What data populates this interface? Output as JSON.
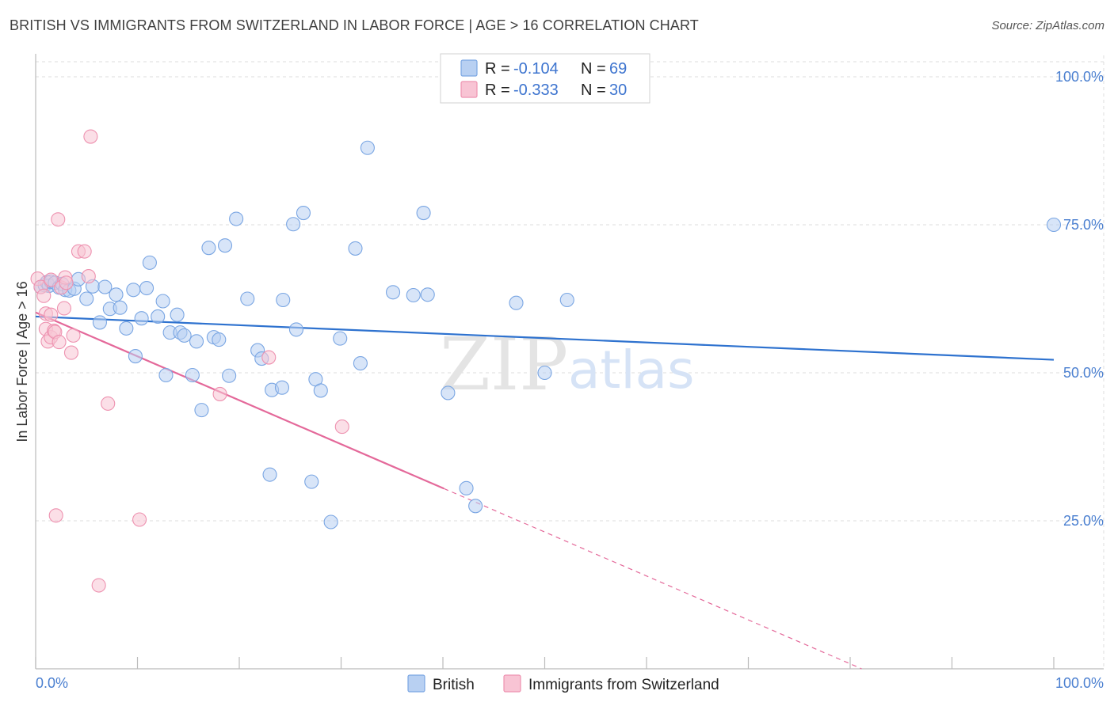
{
  "title": "BRITISH VS IMMIGRANTS FROM SWITZERLAND IN LABOR FORCE | AGE > 16 CORRELATION CHART",
  "source": "Source: ZipAtlas.com",
  "colors": {
    "british_fill": "#b8d0f2",
    "british_stroke": "#7aa6e3",
    "british_line": "#2e72cf",
    "swiss_fill": "#f8c4d4",
    "swiss_stroke": "#ee92b0",
    "swiss_line": "#e4699a",
    "tick_label": "#4a7fd0",
    "grid": "#dcdcdc"
  },
  "legend": {
    "rows": [
      {
        "r_label": "R = ",
        "r_value": "-0.104",
        "n_label": "N = ",
        "n_value": "69"
      },
      {
        "r_label": "R = ",
        "r_value": "-0.333",
        "n_label": "N = ",
        "n_value": "30"
      }
    ]
  },
  "watermark": {
    "zip": "ZIP",
    "atlas": "atlas"
  },
  "chart_data": {
    "type": "scatter",
    "xlabel": "",
    "ylabel": "In Labor Force | Age > 16",
    "xlim": [
      0,
      100
    ],
    "ylim": [
      0,
      100
    ],
    "x_tick_labels": [
      "0.0%",
      "100.0%"
    ],
    "y_ticks": [
      {
        "value": 25,
        "label": "25.0%"
      },
      {
        "value": 50,
        "label": "50.0%"
      },
      {
        "value": 75,
        "label": "75.0%"
      },
      {
        "value": 100,
        "label": "100.0%"
      }
    ],
    "grid": true,
    "legend_position": "top-center",
    "bottom_legend_position": "bottom-center",
    "series": [
      {
        "name": "British",
        "r": -0.104,
        "n": 69,
        "trend": {
          "x0": 0,
          "y0": 59.5,
          "x1": 100,
          "y1": 52.2,
          "dashed_from": null
        },
        "points": [
          [
            0.5,
            64.5
          ],
          [
            0.9,
            64.8
          ],
          [
            1.1,
            65.3
          ],
          [
            1.3,
            64.7
          ],
          [
            1.5,
            65.4
          ],
          [
            1.9,
            65.2
          ],
          [
            2.3,
            64.4
          ],
          [
            2.6,
            65.0
          ],
          [
            2.9,
            64.0
          ],
          [
            3.3,
            63.9
          ],
          [
            3.8,
            64.2
          ],
          [
            4.2,
            65.8
          ],
          [
            5.0,
            62.5
          ],
          [
            5.6,
            64.6
          ],
          [
            6.3,
            58.5
          ],
          [
            6.8,
            64.5
          ],
          [
            7.3,
            60.8
          ],
          [
            7.9,
            63.2
          ],
          [
            8.3,
            61.0
          ],
          [
            8.9,
            57.5
          ],
          [
            9.6,
            64.0
          ],
          [
            9.8,
            52.8
          ],
          [
            10.4,
            59.2
          ],
          [
            10.9,
            64.3
          ],
          [
            11.2,
            68.6
          ],
          [
            12.0,
            59.5
          ],
          [
            12.5,
            62.1
          ],
          [
            12.8,
            49.6
          ],
          [
            13.2,
            56.8
          ],
          [
            13.9,
            59.8
          ],
          [
            14.2,
            56.8
          ],
          [
            14.6,
            56.3
          ],
          [
            15.4,
            49.6
          ],
          [
            15.8,
            55.3
          ],
          [
            16.3,
            43.7
          ],
          [
            17.0,
            71.1
          ],
          [
            17.5,
            56.0
          ],
          [
            18.0,
            55.6
          ],
          [
            18.6,
            71.5
          ],
          [
            19.0,
            49.5
          ],
          [
            19.7,
            76.0
          ],
          [
            20.8,
            62.5
          ],
          [
            21.8,
            53.8
          ],
          [
            22.2,
            52.4
          ],
          [
            23.0,
            32.8
          ],
          [
            23.2,
            47.1
          ],
          [
            24.2,
            47.5
          ],
          [
            24.3,
            62.3
          ],
          [
            25.3,
            75.1
          ],
          [
            25.6,
            57.3
          ],
          [
            26.3,
            77.0
          ],
          [
            27.1,
            31.6
          ],
          [
            27.5,
            48.9
          ],
          [
            28.0,
            47.0
          ],
          [
            29.0,
            24.8
          ],
          [
            29.9,
            55.8
          ],
          [
            31.4,
            71.0
          ],
          [
            31.9,
            51.6
          ],
          [
            32.6,
            88.0
          ],
          [
            35.1,
            63.6
          ],
          [
            37.1,
            63.1
          ],
          [
            38.1,
            77.0
          ],
          [
            38.5,
            63.2
          ],
          [
            40.5,
            46.6
          ],
          [
            42.3,
            30.5
          ],
          [
            43.2,
            27.5
          ],
          [
            47.2,
            61.8
          ],
          [
            50.0,
            50.0
          ],
          [
            52.2,
            62.3
          ],
          [
            100.0,
            75.0
          ]
        ]
      },
      {
        "name": "Immigrants from Switzerland",
        "r": -0.333,
        "n": 30,
        "trend": {
          "x0": 0,
          "y0": 60.2,
          "x1": 100,
          "y1": -14.0,
          "dashed_from": 40.1
        },
        "points": [
          [
            0.2,
            65.9
          ],
          [
            0.5,
            64.5
          ],
          [
            0.8,
            63.0
          ],
          [
            1.0,
            60.0
          ],
          [
            1.0,
            57.4
          ],
          [
            1.2,
            55.3
          ],
          [
            1.5,
            65.7
          ],
          [
            1.5,
            59.8
          ],
          [
            1.5,
            56.0
          ],
          [
            1.8,
            57.1
          ],
          [
            1.9,
            56.9
          ],
          [
            2.0,
            25.9
          ],
          [
            2.2,
            75.9
          ],
          [
            2.3,
            55.2
          ],
          [
            2.5,
            64.4
          ],
          [
            2.8,
            60.9
          ],
          [
            2.9,
            66.1
          ],
          [
            3.0,
            65.2
          ],
          [
            3.5,
            53.4
          ],
          [
            3.7,
            56.3
          ],
          [
            4.2,
            70.5
          ],
          [
            4.8,
            70.5
          ],
          [
            5.2,
            66.3
          ],
          [
            5.4,
            89.9
          ],
          [
            6.2,
            14.1
          ],
          [
            7.1,
            44.8
          ],
          [
            10.2,
            25.2
          ],
          [
            18.1,
            46.4
          ],
          [
            22.9,
            52.6
          ],
          [
            30.1,
            40.9
          ]
        ]
      }
    ]
  }
}
